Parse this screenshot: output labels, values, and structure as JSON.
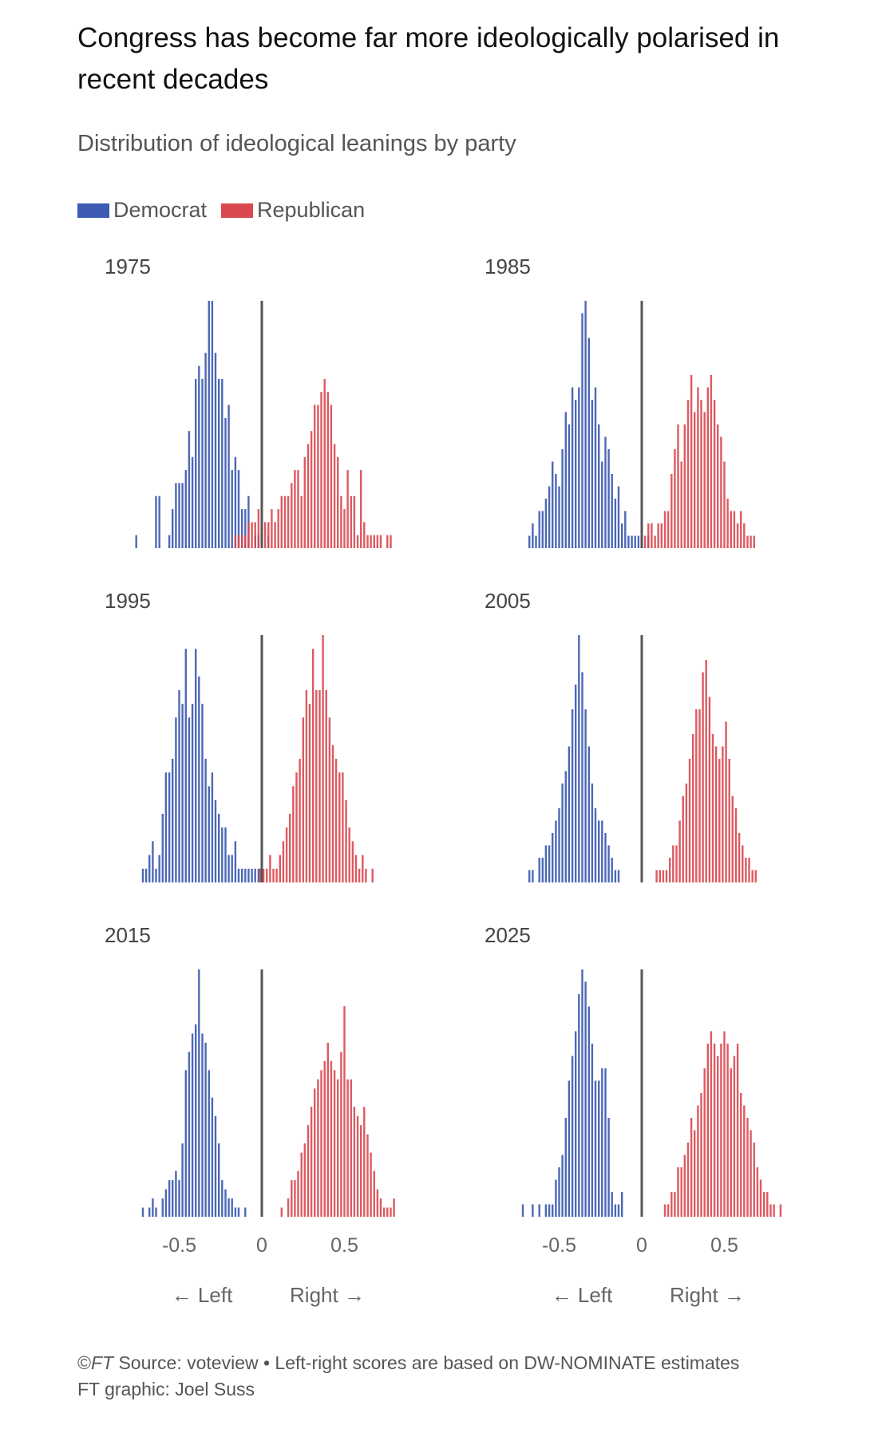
{
  "title": "Congress has become far more ideologically polarised in recent decades",
  "subtitle": "Distribution of ideological leanings by party",
  "legend": [
    {
      "label": "Democrat",
      "color": "#3d5bb1"
    },
    {
      "label": "Republican",
      "color": "#d9484f"
    }
  ],
  "footer": {
    "copyright": "©",
    "ft": "FT",
    "source": " Source: voteview • Left-right scores are based on DW-NOMINATE estimates",
    "credit": "FT graphic: Joel Suss"
  },
  "axis": {
    "ticks": [
      "-0.5",
      "0",
      "0.5"
    ],
    "tick_values": [
      -0.5,
      0,
      0.5
    ],
    "left_label": "← Left",
    "right_label": "Right →"
  },
  "chart_data": [
    {
      "type": "bar",
      "title": "1975",
      "x_range": [
        -0.77,
        1.0
      ],
      "bin_width": 0.02,
      "series": [
        {
          "name": "Democrat",
          "start": -0.76,
          "values": [
            1,
            0,
            0,
            0,
            0,
            0,
            4,
            4,
            0,
            0,
            1,
            3,
            5,
            5,
            5,
            6,
            9,
            7,
            13,
            14,
            13,
            15,
            19,
            19,
            15,
            13,
            13,
            10,
            11,
            6,
            7,
            6,
            3,
            3,
            4,
            0,
            1,
            1,
            0,
            0,
            1,
            0,
            0,
            0,
            0,
            0,
            0,
            0,
            0,
            0,
            0,
            0,
            0,
            0,
            0,
            0,
            0,
            0,
            0,
            0,
            0,
            0,
            0,
            0,
            0,
            0,
            0,
            0,
            0,
            0,
            0,
            0,
            0,
            0,
            0,
            0,
            0,
            0,
            0,
            0,
            0,
            0,
            0,
            0,
            0,
            0,
            0
          ]
        },
        {
          "name": "Republican",
          "start": -0.16,
          "values": [
            1,
            1,
            1,
            1,
            2,
            2,
            2,
            3,
            2,
            2,
            2,
            3,
            2,
            3,
            4,
            4,
            4,
            5,
            6,
            6,
            4,
            7,
            8,
            9,
            11,
            11,
            12,
            13,
            12,
            11,
            8,
            7,
            4,
            3,
            6,
            4,
            4,
            1,
            6,
            2,
            1,
            1,
            1,
            1,
            1,
            0,
            1,
            1,
            0,
            0,
            0,
            0,
            0,
            0,
            0,
            0,
            0,
            0,
            0,
            0,
            0,
            0,
            0,
            0,
            0,
            0,
            0,
            0,
            0,
            0,
            0,
            0,
            0,
            0,
            0,
            0,
            0,
            0,
            0,
            0,
            0,
            0,
            0,
            0,
            0,
            0,
            0,
            0,
            0,
            0,
            0,
            0,
            0,
            0,
            0,
            0,
            0,
            0,
            0,
            0,
            0,
            0,
            0,
            0,
            0,
            0,
            0,
            0,
            0,
            0,
            0,
            0,
            0,
            0,
            0,
            0,
            0,
            0,
            0,
            0,
            0,
            0,
            0,
            0,
            0,
            0
          ]
        }
      ]
    },
    {
      "type": "bar",
      "title": "1985",
      "x_range": [
        -0.77,
        1.0
      ],
      "bin_width": 0.02,
      "series": [
        {
          "name": "Democrat",
          "start": -0.68,
          "values": [
            1,
            2,
            1,
            3,
            3,
            4,
            5,
            7,
            6,
            5,
            8,
            11,
            10,
            13,
            12,
            13,
            19,
            20,
            17,
            12,
            13,
            10,
            7,
            9,
            8,
            6,
            4,
            5,
            2,
            3,
            1,
            1,
            1,
            1,
            1,
            0,
            1,
            0,
            0,
            0,
            0,
            0,
            0,
            0,
            0,
            0,
            0,
            0,
            0,
            0,
            0,
            0
          ]
        },
        {
          "name": "Republican",
          "start": 0.0,
          "values": [
            1,
            1,
            2,
            2,
            1,
            2,
            2,
            3,
            3,
            6,
            8,
            10,
            7,
            10,
            12,
            14,
            11,
            13,
            12,
            11,
            13,
            14,
            12,
            10,
            9,
            7,
            4,
            3,
            3,
            2,
            3,
            2,
            1,
            1,
            1,
            0,
            0,
            0,
            0,
            0,
            0,
            0
          ]
        }
      ]
    },
    {
      "type": "bar",
      "title": "1995",
      "x_range": [
        -0.77,
        1.0
      ],
      "bin_width": 0.02,
      "series": [
        {
          "name": "Democrat",
          "start": -0.72,
          "values": [
            1,
            1,
            2,
            3,
            1,
            2,
            5,
            8,
            8,
            9,
            12,
            14,
            13,
            17,
            12,
            13,
            17,
            15,
            13,
            9,
            7,
            8,
            6,
            5,
            4,
            4,
            2,
            2,
            3,
            1,
            1,
            1,
            1,
            1,
            1,
            1,
            0,
            0,
            0,
            0,
            0
          ]
        },
        {
          "name": "Republican",
          "start": -0.01,
          "values": [
            1,
            1,
            1,
            2,
            1,
            1,
            2,
            3,
            4,
            5,
            7,
            8,
            9,
            12,
            14,
            13,
            17,
            14,
            14,
            18,
            14,
            12,
            10,
            9,
            8,
            8,
            6,
            4,
            3,
            2,
            1,
            2,
            1,
            0,
            1
          ]
        }
      ]
    },
    {
      "type": "bar",
      "title": "2005",
      "x_range": [
        -0.77,
        1.0
      ],
      "bin_width": 0.02,
      "series": [
        {
          "name": "Democrat",
          "start": -0.68,
          "values": [
            1,
            1,
            0,
            2,
            2,
            3,
            3,
            4,
            5,
            6,
            8,
            9,
            11,
            14,
            16,
            20,
            17,
            14,
            11,
            8,
            6,
            5,
            5,
            4,
            3,
            2,
            1,
            1,
            0,
            0
          ]
        },
        {
          "name": "Republican",
          "start": 0.09,
          "values": [
            1,
            1,
            1,
            1,
            2,
            3,
            3,
            5,
            7,
            8,
            10,
            12,
            14,
            14,
            17,
            18,
            15,
            12,
            11,
            10,
            11,
            13,
            10,
            7,
            6,
            4,
            3,
            2,
            2,
            1,
            1
          ]
        }
      ]
    },
    {
      "type": "bar",
      "title": "2015",
      "x_range": [
        -0.77,
        1.0
      ],
      "bin_width": 0.02,
      "series": [
        {
          "name": "Democrat",
          "start": -0.72,
          "values": [
            1,
            0,
            1,
            2,
            1,
            0,
            2,
            3,
            4,
            4,
            5,
            4,
            8,
            16,
            18,
            20,
            21,
            27,
            20,
            19,
            16,
            13,
            11,
            8,
            4,
            3,
            2,
            2,
            1,
            1,
            0,
            1
          ]
        },
        {
          "name": "Republican",
          "start": 0.12,
          "values": [
            1,
            0,
            2,
            4,
            4,
            5,
            7,
            8,
            10,
            12,
            14,
            15,
            16,
            17,
            19,
            17,
            16,
            15,
            18,
            23,
            15,
            15,
            12,
            11,
            10,
            12,
            9,
            7,
            5,
            3,
            2,
            1,
            1,
            1,
            2
          ]
        }
      ]
    },
    {
      "type": "bar",
      "title": "2025",
      "x_range": [
        -0.77,
        1.0
      ],
      "bin_width": 0.02,
      "series": [
        {
          "name": "Democrat",
          "start": -0.72,
          "values": [
            1,
            0,
            0,
            1,
            0,
            1,
            0,
            1,
            1,
            1,
            3,
            4,
            5,
            8,
            11,
            13,
            15,
            18,
            20,
            19,
            17,
            14,
            11,
            11,
            12,
            12,
            8,
            2,
            1,
            1,
            2
          ]
        },
        {
          "name": "Republican",
          "start": 0.14,
          "values": [
            1,
            1,
            2,
            2,
            4,
            4,
            5,
            6,
            8,
            7,
            9,
            10,
            12,
            14,
            15,
            14,
            13,
            14,
            15,
            14,
            12,
            13,
            14,
            10,
            9,
            8,
            7,
            6,
            4,
            3,
            2,
            2,
            1,
            1,
            0,
            1
          ]
        }
      ]
    }
  ]
}
